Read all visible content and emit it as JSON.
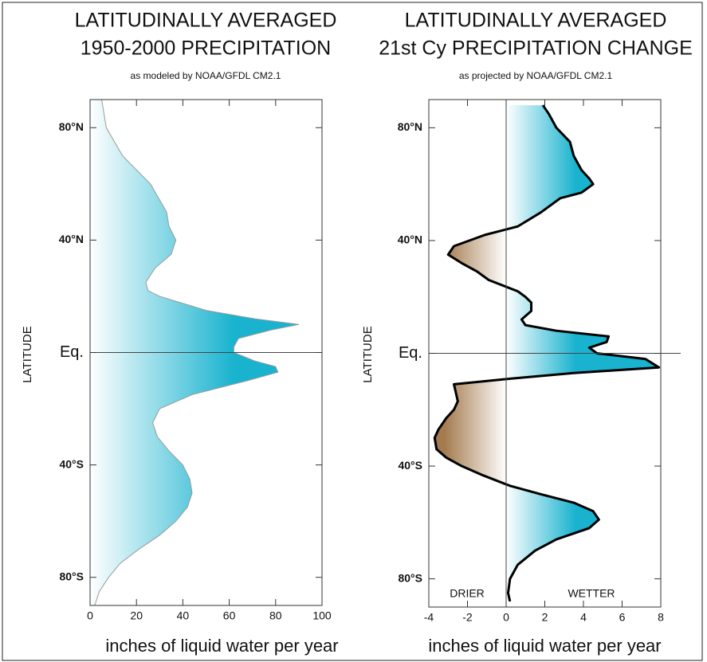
{
  "chart_data": [
    {
      "type": "area",
      "orientation": "horizontal",
      "title": [
        "LATITUDINALLY AVERAGED",
        "1950-2000 PRECIPITATION"
      ],
      "subtitle": "as modeled by NOAA/GFDL CM2.1",
      "xlabel": "inches of liquid water per year",
      "ylabel": "LATITUDE",
      "color": "#19b3cf",
      "line_color": "#999999",
      "x": [
        90,
        80,
        70,
        60,
        50,
        45,
        40,
        35,
        30,
        25,
        22,
        20,
        15,
        12,
        10,
        8,
        5,
        2,
        0,
        -3,
        -5,
        -7,
        -10,
        -15,
        -20,
        -25,
        -30,
        -35,
        -40,
        -45,
        -50,
        -55,
        -60,
        -65,
        -70,
        -75,
        -80,
        -85,
        -90
      ],
      "values": [
        5,
        7,
        14,
        26,
        33,
        34,
        37,
        35,
        28,
        24,
        25,
        30,
        50,
        71,
        90,
        78,
        64,
        62,
        62,
        71,
        80,
        81,
        68,
        44,
        30,
        27,
        29,
        34,
        40,
        43,
        44,
        42,
        37,
        30,
        21,
        13,
        8,
        4,
        2
      ],
      "xlim": [
        -90,
        90
      ],
      "xticks": [
        {
          "value": 80,
          "label": "80°N"
        },
        {
          "value": 40,
          "label": "40°N"
        },
        {
          "value": 0,
          "label": "Eq."
        },
        {
          "value": -40,
          "label": "40°S"
        },
        {
          "value": -80,
          "label": "80°S"
        }
      ],
      "ylim": [
        0,
        100
      ],
      "yticks": [
        0,
        20,
        40,
        60,
        80,
        100
      ],
      "ref_lat": 0
    },
    {
      "type": "area",
      "orientation": "horizontal",
      "title": [
        "LATITUDINALLY AVERAGED",
        "21st Cy PRECIPITATION CHANGE"
      ],
      "subtitle": "as projected by NOAA/GFDL CM2.1",
      "xlabel": "inches of liquid water per year",
      "ylabel": "LATITUDE",
      "color": "#19b3cf",
      "negative_color": "#a47b4e",
      "line_color": "#000000",
      "annotations": [
        "DRIER",
        "WETTER"
      ],
      "x": [
        88,
        85,
        80,
        75,
        70,
        65,
        62,
        60,
        57,
        55,
        50,
        45,
        42,
        38,
        35,
        32,
        29,
        26,
        22,
        20,
        18,
        15,
        12,
        10,
        8,
        6,
        4,
        2,
        0,
        -2,
        -5,
        -7,
        -9,
        -11,
        -14,
        -17,
        -20,
        -23,
        -27,
        -30,
        -34,
        -37,
        -40,
        -43,
        -47,
        -50,
        -53,
        -56,
        -59,
        -62,
        -66,
        -70,
        -75,
        -80,
        -85,
        -88
      ],
      "values": [
        1.9,
        2.2,
        2.6,
        3.3,
        3.5,
        3.9,
        4.3,
        4.5,
        3.9,
        2.8,
        1.8,
        0.6,
        -1.1,
        -2.7,
        -3.0,
        -2.3,
        -1.5,
        -0.9,
        0.6,
        1.0,
        1.3,
        1.3,
        0.8,
        1.0,
        2.6,
        5.3,
        5.2,
        4.3,
        4.7,
        7.2,
        7.9,
        3.5,
        0.2,
        -2.7,
        -2.6,
        -2.5,
        -2.7,
        -3.1,
        -3.5,
        -3.7,
        -3.6,
        -3.1,
        -2.3,
        -1.3,
        0.2,
        1.8,
        3.5,
        4.5,
        4.8,
        4.3,
        2.6,
        1.5,
        0.6,
        0.2,
        0.1,
        0.2
      ],
      "xlim": [
        -90,
        90
      ],
      "xticks": [
        {
          "value": 80,
          "label": "80°N"
        },
        {
          "value": 40,
          "label": "40°N"
        },
        {
          "value": 0,
          "label": "Eq."
        },
        {
          "value": -40,
          "label": "40°S"
        },
        {
          "value": -80,
          "label": "80°S"
        }
      ],
      "ylim": [
        -4,
        8
      ],
      "yticks": [
        -4,
        -2,
        0,
        2,
        4,
        6,
        8
      ],
      "ref_lat": 0,
      "ref_value": 0
    }
  ]
}
